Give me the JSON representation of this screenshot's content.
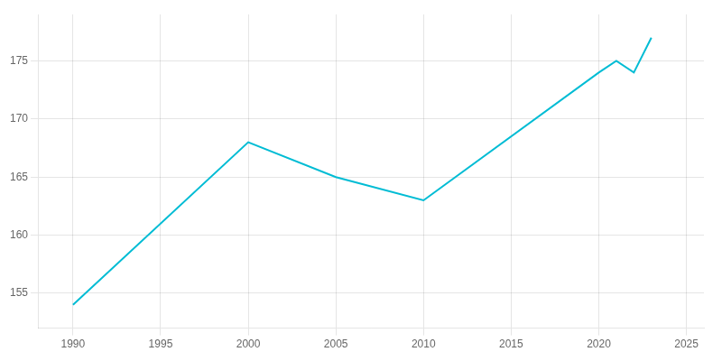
{
  "chart_data": {
    "type": "line",
    "x": [
      1990,
      2000,
      2005,
      2010,
      2020,
      2021,
      2022,
      2023
    ],
    "values": [
      154,
      168,
      165,
      163,
      174,
      175,
      174,
      177
    ],
    "color": "#00bcd4",
    "xlim": [
      1988,
      2026
    ],
    "xticks": [
      1990,
      1995,
      2000,
      2005,
      2010,
      2015,
      2020,
      2025
    ],
    "ylim": [
      152,
      179
    ],
    "yticks": [
      155,
      160,
      165,
      170,
      175
    ],
    "grid": true
  }
}
